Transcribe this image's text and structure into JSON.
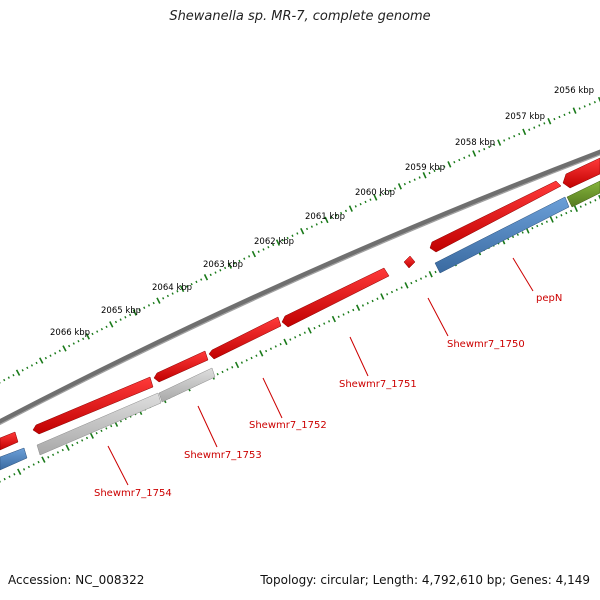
{
  "title": "Shewanella sp. MR-7, complete genome",
  "footer": {
    "accession": "Accession: NC_008322",
    "summary": "Topology: circular; Length: 4,792,610 bp; Genes: 4,149"
  },
  "colors": {
    "backbone": "#808080",
    "forward_cds": "#e8151b",
    "reverse_cds": "#4a7fb8",
    "pseudo": "#b8b8b8",
    "other": "#6a9a2a",
    "tick": "#1a7a1a",
    "label": "#cc0000"
  },
  "scale": {
    "labels": [
      "2056 kbp",
      "2057 kbp",
      "2058 kbp",
      "2059 kbp",
      "2060 kbp",
      "2061 kbp",
      "2062 kbp",
      "2063 kbp",
      "2064 kbp",
      "2065 kbp",
      "2066 kbp"
    ]
  },
  "genes": [
    {
      "label": "pepN"
    },
    {
      "label": "Shewmr7_1750"
    },
    {
      "label": "Shewmr7_1751"
    },
    {
      "label": "Shewmr7_1752"
    },
    {
      "label": "Shewmr7_1753"
    },
    {
      "label": "Shewmr7_1754"
    }
  ]
}
